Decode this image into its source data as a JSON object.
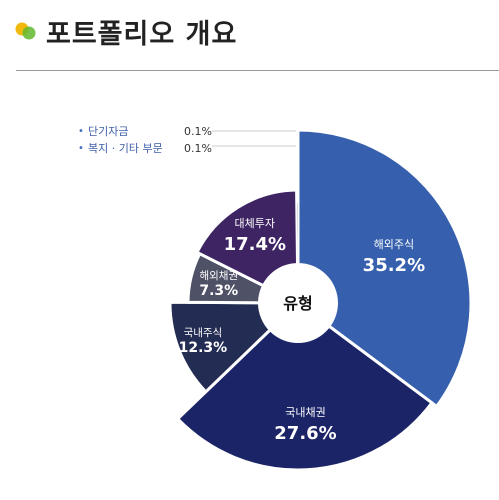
{
  "header": {
    "title": "포트폴리오 개요",
    "icon": "two-dot-logo-icon",
    "icon_colors": [
      "#f0b400",
      "#62b82e"
    ]
  },
  "chart_data": {
    "type": "pie",
    "variant": "polar-area-donut",
    "center_label": "유형",
    "categories": [
      "해외주식",
      "국내채권",
      "국내주식",
      "해외채권",
      "대체투자",
      "단기자금",
      "복지 · 기타 부문"
    ],
    "values": [
      35.2,
      27.6,
      12.3,
      7.3,
      17.4,
      0.1,
      0.1
    ],
    "value_labels": [
      "35.2%",
      "27.6%",
      "12.3%",
      "7.3%",
      "17.4%",
      "0.1%",
      "0.1%"
    ],
    "colors": [
      "#3660ad",
      "#1b2467",
      "#232c52",
      "#4f5167",
      "#3e2463",
      "#2a2a33",
      "#6f7390"
    ],
    "labels_inside": [
      true,
      true,
      true,
      true,
      true,
      false,
      false
    ],
    "minor_legend_indices": [
      5,
      6
    ],
    "start_angle_deg": 0,
    "direction": "clockwise"
  }
}
